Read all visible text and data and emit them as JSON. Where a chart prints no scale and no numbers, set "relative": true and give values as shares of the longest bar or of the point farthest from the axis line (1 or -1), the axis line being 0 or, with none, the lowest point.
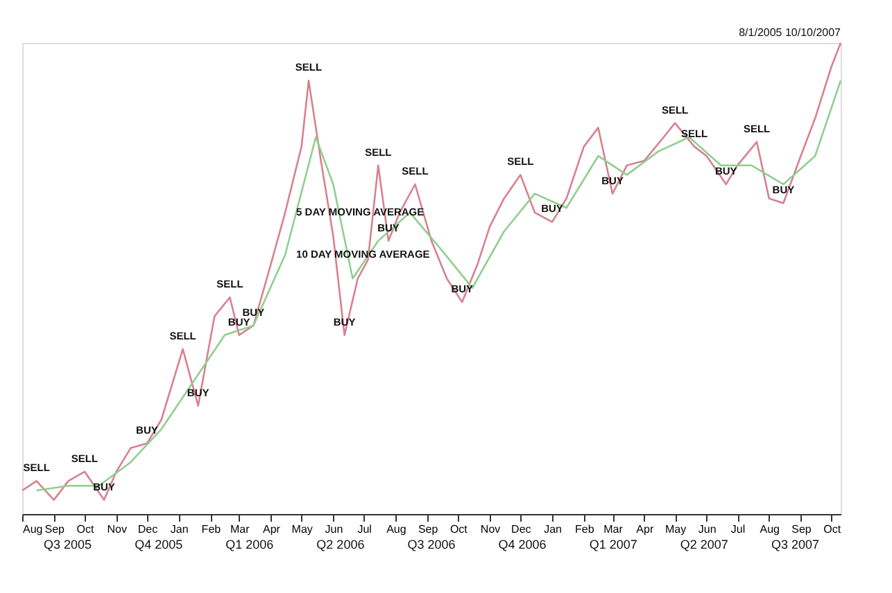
{
  "chart_data": {
    "type": "line",
    "relative": true,
    "marker": "none",
    "line_style": "solid",
    "grid": false,
    "subtitle": "8/1/2005 10/10/2007",
    "xlim": [
      "2005-08-01",
      "2007-10-10"
    ],
    "xticks": [
      {
        "value": "2005-08-01",
        "label": "Aug"
      },
      {
        "value": "2005-09-01",
        "label": "Sep"
      },
      {
        "value": "2005-10-01",
        "label": "Oct"
      },
      {
        "value": "2005-11-01",
        "label": "Nov"
      },
      {
        "value": "2005-12-01",
        "label": "Dec"
      },
      {
        "value": "2006-01-01",
        "label": "Jan"
      },
      {
        "value": "2006-02-01",
        "label": "Feb"
      },
      {
        "value": "2006-03-01",
        "label": "Mar"
      },
      {
        "value": "2006-04-01",
        "label": "Apr"
      },
      {
        "value": "2006-05-01",
        "label": "May"
      },
      {
        "value": "2006-06-01",
        "label": "Jun"
      },
      {
        "value": "2006-07-01",
        "label": "Jul"
      },
      {
        "value": "2006-08-01",
        "label": "Aug"
      },
      {
        "value": "2006-09-01",
        "label": "Sep"
      },
      {
        "value": "2006-10-01",
        "label": "Oct"
      },
      {
        "value": "2006-11-01",
        "label": "Nov"
      },
      {
        "value": "2006-12-01",
        "label": "Dec"
      },
      {
        "value": "2007-01-01",
        "label": "Jan"
      },
      {
        "value": "2007-02-01",
        "label": "Feb"
      },
      {
        "value": "2007-03-01",
        "label": "Mar"
      },
      {
        "value": "2007-04-01",
        "label": "Apr"
      },
      {
        "value": "2007-05-01",
        "label": "May"
      },
      {
        "value": "2007-06-01",
        "label": "Jun"
      },
      {
        "value": "2007-07-01",
        "label": "Jul"
      },
      {
        "value": "2007-08-01",
        "label": "Aug"
      },
      {
        "value": "2007-09-01",
        "label": "Sep"
      },
      {
        "value": "2007-10-01",
        "label": "Oct"
      }
    ],
    "series": [
      {
        "color": "#d9808f",
        "x": [
          "2005-08-01",
          "2005-08-15",
          "2005-09-01",
          "2005-09-15",
          "2005-10-01",
          "2005-10-20",
          "2005-11-01",
          "2005-11-15",
          "2005-12-01",
          "2005-12-15",
          "2006-01-05",
          "2006-01-20",
          "2006-02-05",
          "2006-02-20",
          "2006-03-01",
          "2006-03-15",
          "2006-04-01",
          "2006-04-15",
          "2006-05-01",
          "2006-05-08",
          "2006-05-20",
          "2006-06-01",
          "2006-06-12",
          "2006-06-25",
          "2006-07-05",
          "2006-07-15",
          "2006-07-25",
          "2006-08-05",
          "2006-08-20",
          "2006-09-05",
          "2006-09-20",
          "2006-10-05",
          "2006-10-20",
          "2006-11-01",
          "2006-11-15",
          "2006-12-01",
          "2006-12-15",
          "2007-01-01",
          "2007-01-15",
          "2007-02-01",
          "2007-02-15",
          "2007-03-01",
          "2007-03-15",
          "2007-04-01",
          "2007-04-20",
          "2007-05-01",
          "2007-05-20",
          "2007-06-01",
          "2007-06-20",
          "2007-07-01",
          "2007-07-20",
          "2007-08-01",
          "2007-08-15",
          "2007-09-01",
          "2007-09-15",
          "2007-10-01",
          "2007-10-10"
        ],
        "values": [
          0.05,
          0.07,
          0.03,
          0.07,
          0.09,
          0.03,
          0.09,
          0.14,
          0.15,
          0.2,
          0.35,
          0.23,
          0.42,
          0.46,
          0.38,
          0.4,
          0.53,
          0.64,
          0.78,
          0.92,
          0.75,
          0.59,
          0.38,
          0.5,
          0.54,
          0.74,
          0.58,
          0.64,
          0.7,
          0.58,
          0.5,
          0.45,
          0.53,
          0.61,
          0.67,
          0.72,
          0.64,
          0.62,
          0.67,
          0.78,
          0.82,
          0.68,
          0.74,
          0.75,
          0.8,
          0.83,
          0.78,
          0.76,
          0.7,
          0.74,
          0.79,
          0.67,
          0.66,
          0.76,
          0.84,
          0.95,
          1.0
        ]
      },
      {
        "color": "#8fcf8f",
        "x": [
          "2005-08-15",
          "2005-09-15",
          "2005-10-15",
          "2005-11-15",
          "2005-12-15",
          "2006-01-15",
          "2006-02-15",
          "2006-03-15",
          "2006-04-15",
          "2006-05-15",
          "2006-06-01",
          "2006-06-20",
          "2006-07-15",
          "2006-08-15",
          "2006-09-15",
          "2006-10-15",
          "2006-11-15",
          "2006-12-15",
          "2007-01-15",
          "2007-02-15",
          "2007-03-15",
          "2007-04-15",
          "2007-05-15",
          "2007-06-15",
          "2007-07-15",
          "2007-08-15",
          "2007-09-15",
          "2007-10-10"
        ],
        "values": [
          0.05,
          0.06,
          0.06,
          0.11,
          0.18,
          0.28,
          0.38,
          0.4,
          0.55,
          0.8,
          0.7,
          0.5,
          0.58,
          0.64,
          0.56,
          0.48,
          0.6,
          0.68,
          0.65,
          0.76,
          0.72,
          0.77,
          0.8,
          0.74,
          0.74,
          0.7,
          0.76,
          0.92
        ]
      }
    ],
    "annotations": [
      {
        "text": "SELL",
        "x": "2005-08-15",
        "y": 0.07
      },
      {
        "text": "BUY",
        "x": "2005-10-20",
        "y": 0.03
      },
      {
        "text": "SELL",
        "x": "2005-10-01",
        "y": 0.09
      },
      {
        "text": "BUY",
        "x": "2005-12-01",
        "y": 0.15
      },
      {
        "text": "BUY",
        "x": "2006-03-01",
        "y": 0.38
      },
      {
        "text": "SELL",
        "x": "2006-01-05",
        "y": 0.35
      },
      {
        "text": "SELL",
        "x": "2006-02-20",
        "y": 0.46
      },
      {
        "text": "BUY",
        "x": "2006-01-20",
        "y": 0.23
      },
      {
        "text": "BUY",
        "x": "2006-03-15",
        "y": 0.4
      },
      {
        "text": "SELL",
        "x": "2006-05-08",
        "y": 0.92
      },
      {
        "text": "BUY",
        "x": "2006-06-12",
        "y": 0.38
      },
      {
        "text": "SELL",
        "x": "2006-07-15",
        "y": 0.74
      },
      {
        "text": "BUY",
        "x": "2006-07-25",
        "y": 0.58
      },
      {
        "text": "SELL",
        "x": "2006-08-20",
        "y": 0.7
      },
      {
        "text": "BUY",
        "x": "2006-10-05",
        "y": 0.45
      },
      {
        "text": "SELL",
        "x": "2006-12-01",
        "y": 0.72
      },
      {
        "text": "BUY",
        "x": "2007-01-01",
        "y": 0.62
      },
      {
        "text": "SELL",
        "x": "2007-05-01",
        "y": 0.83
      },
      {
        "text": "BUY",
        "x": "2007-03-01",
        "y": 0.68
      },
      {
        "text": "SELL",
        "x": "2007-05-20",
        "y": 0.78
      },
      {
        "text": "BUY",
        "x": "2007-06-20",
        "y": 0.7
      },
      {
        "text": "SELL",
        "x": "2007-07-20",
        "y": 0.79
      },
      {
        "text": "BUY",
        "x": "2007-08-15",
        "y": 0.66
      },
      {
        "text": "5 DAY MOVING AVERAGE",
        "x": "2006-04-15",
        "y": 0.64
      },
      {
        "text": "10 DAY MOVING AVERAGE",
        "x": "2006-04-15",
        "y": 0.55
      },
      "Q3 2005",
      "Q4 2005",
      "Q1 2006",
      "Q2 2006",
      "Q3 2006",
      "Q4 2006",
      "Q1 2007",
      "Q2 2007",
      "Q3 2007"
    ]
  }
}
